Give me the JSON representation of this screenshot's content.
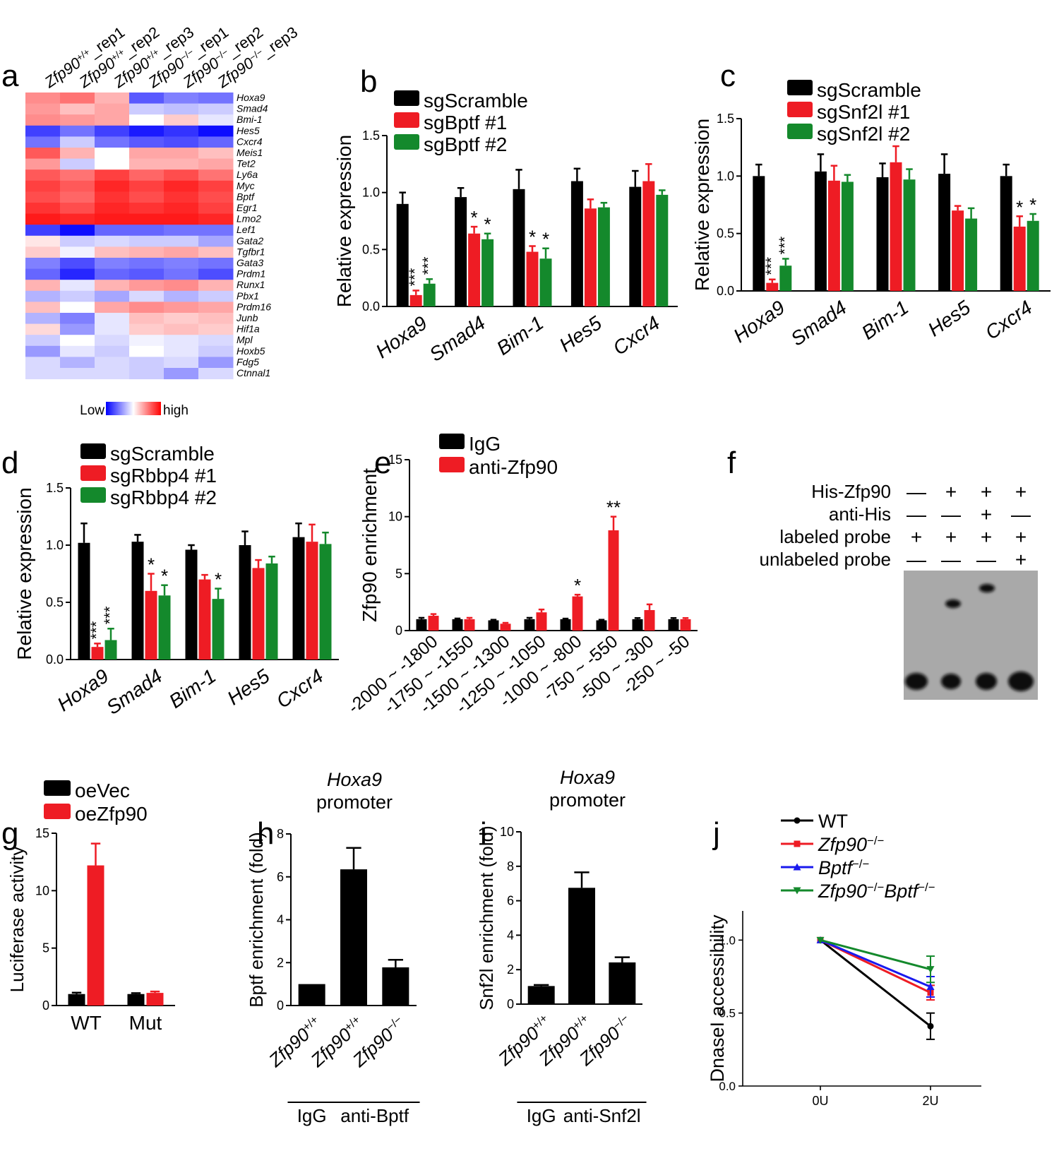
{
  "colors": {
    "black": "#000000",
    "red": "#ee1c24",
    "green": "#14892c",
    "blue": "#1a1aee",
    "heat_low": "#0000ff",
    "heat_mid": "#ffffff",
    "heat_high": "#ff0000",
    "gel_bg": "#a9a9a9",
    "band": "#080808"
  },
  "chart_data": [
    {
      "panel": "a",
      "type": "heatmap",
      "columns": [
        "Zfp90+/+_rep1",
        "Zfp90+/+_rep2",
        "Zfp90+/+_rep3",
        "Zfp90−/−_rep1",
        "Zfp90−/−_rep2",
        "Zfp90−/−_rep3"
      ],
      "column_labels": [
        {
          "gene": "Zfp90",
          "sup": "+/+",
          "rep": "_rep1"
        },
        {
          "gene": "Zfp90",
          "sup": "+/+",
          "rep": "_rep2"
        },
        {
          "gene": "Zfp90",
          "sup": "+/+",
          "rep": "_rep3"
        },
        {
          "gene": "Zfp90",
          "sup": "−/−",
          "rep": "_rep1"
        },
        {
          "gene": "Zfp90",
          "sup": "−/−",
          "rep": "_rep2"
        },
        {
          "gene": "Zfp90",
          "sup": "−/−",
          "rep": "_rep3"
        }
      ],
      "rows": [
        "Hoxa9",
        "Smad4",
        "Bmi-1",
        "Hes5",
        "Cxcr4",
        "Meis1",
        "Tet2",
        "Ly6a",
        "Myc",
        "Bptf",
        "Egr1",
        "Lmo2",
        "Lef1",
        "Gata2",
        "Tgfbr1",
        "Gata3",
        "Prdm1",
        "Runx1",
        "Pbx1",
        "Prdm16",
        "Junb",
        "Hif1a",
        "Mpl",
        "Hoxb5",
        "Fdg5",
        "Ctnnal1"
      ],
      "values": [
        [
          0.45,
          0.55,
          0.3,
          -0.65,
          -0.5,
          -0.55
        ],
        [
          0.4,
          0.25,
          0.35,
          -0.2,
          -0.25,
          -0.2
        ],
        [
          0.45,
          0.4,
          0.35,
          0.0,
          0.2,
          -0.1
        ],
        [
          -0.75,
          -0.55,
          -0.75,
          -0.9,
          -0.8,
          -0.95
        ],
        [
          -0.55,
          -0.2,
          -0.55,
          -0.65,
          -0.7,
          -0.6
        ],
        [
          0.65,
          0.3,
          0.0,
          0.35,
          0.35,
          0.25
        ],
        [
          0.4,
          -0.2,
          0.0,
          0.3,
          0.3,
          0.35
        ],
        [
          0.65,
          0.55,
          0.75,
          0.6,
          0.7,
          0.55
        ],
        [
          0.75,
          0.65,
          0.85,
          0.75,
          0.85,
          0.75
        ],
        [
          0.7,
          0.6,
          0.8,
          0.7,
          0.8,
          0.7
        ],
        [
          0.8,
          0.7,
          0.85,
          0.8,
          0.85,
          0.75
        ],
        [
          0.9,
          0.85,
          0.9,
          0.9,
          0.9,
          0.85
        ],
        [
          -0.75,
          -0.95,
          -0.6,
          -0.6,
          -0.55,
          -0.55
        ],
        [
          0.1,
          -0.2,
          -0.15,
          -0.2,
          -0.2,
          -0.35
        ],
        [
          0.2,
          -0.05,
          0.25,
          0.3,
          0.35,
          0.25
        ],
        [
          -0.5,
          -0.7,
          -0.5,
          -0.55,
          -0.5,
          -0.55
        ],
        [
          -0.6,
          -0.85,
          -0.6,
          -0.65,
          -0.55,
          -0.7
        ],
        [
          0.3,
          -0.1,
          0.3,
          0.4,
          0.45,
          0.3
        ],
        [
          -0.3,
          -0.2,
          -0.35,
          -0.15,
          -0.3,
          -0.2
        ],
        [
          0.25,
          0.0,
          0.35,
          0.45,
          0.4,
          0.35
        ],
        [
          -0.3,
          -0.5,
          -0.1,
          0.25,
          0.2,
          0.25
        ],
        [
          0.15,
          -0.4,
          -0.1,
          0.2,
          0.25,
          0.2
        ],
        [
          -0.2,
          0.0,
          -0.15,
          -0.05,
          -0.1,
          -0.15
        ],
        [
          -0.4,
          -0.1,
          -0.2,
          0.0,
          -0.1,
          -0.2
        ],
        [
          -0.15,
          -0.3,
          -0.15,
          -0.2,
          -0.15,
          -0.4
        ],
        [
          -0.15,
          -0.15,
          -0.15,
          -0.2,
          -0.4,
          -0.15
        ]
      ],
      "legend": {
        "low": "Low",
        "high": "high"
      }
    },
    {
      "panel": "b",
      "type": "bar",
      "ylabel": "Relative expression",
      "ylim": [
        0,
        1.5
      ],
      "yticks": [
        "0.0",
        "0.5",
        "1.0",
        "1.5"
      ],
      "categories": [
        "Hoxa9",
        "Smad4",
        "Bim-1",
        "Hes5",
        "Cxcr4"
      ],
      "series": [
        {
          "name": "sgScramble",
          "color": "#000000",
          "values": [
            0.9,
            0.96,
            1.03,
            1.1,
            1.05
          ],
          "errors": [
            0.1,
            0.08,
            0.17,
            0.11,
            0.14
          ]
        },
        {
          "name": "sgBptf #1",
          "color": "#ee1c24",
          "values": [
            0.1,
            0.64,
            0.48,
            0.86,
            1.1
          ],
          "errors": [
            0.04,
            0.06,
            0.05,
            0.08,
            0.15
          ]
        },
        {
          "name": "sgBptf #2",
          "color": "#14892c",
          "values": [
            0.2,
            0.59,
            0.42,
            0.87,
            0.98
          ],
          "errors": [
            0.04,
            0.05,
            0.09,
            0.04,
            0.04
          ]
        }
      ],
      "annotations": [
        {
          "category": 0,
          "series": 1,
          "text": "***"
        },
        {
          "category": 0,
          "series": 2,
          "text": "***"
        },
        {
          "category": 1,
          "series": 1,
          "text": "*"
        },
        {
          "category": 1,
          "series": 2,
          "text": "*"
        },
        {
          "category": 2,
          "series": 1,
          "text": "*"
        },
        {
          "category": 2,
          "series": 2,
          "text": "*"
        }
      ]
    },
    {
      "panel": "c",
      "type": "bar",
      "ylabel": "Relative expression",
      "ylim": [
        0,
        1.5
      ],
      "yticks": [
        "0.0",
        "0.5",
        "1.0",
        "1.5"
      ],
      "categories": [
        "Hoxa9",
        "Smad4",
        "Bim-1",
        "Hes5",
        "Cxcr4"
      ],
      "series": [
        {
          "name": "sgScramble",
          "color": "#000000",
          "values": [
            1.0,
            1.04,
            0.99,
            1.02,
            1.0
          ],
          "errors": [
            0.1,
            0.15,
            0.12,
            0.17,
            0.1
          ]
        },
        {
          "name": "sgSnf2l #1",
          "color": "#ee1c24",
          "values": [
            0.07,
            0.96,
            1.12,
            0.7,
            0.56
          ],
          "errors": [
            0.03,
            0.13,
            0.14,
            0.04,
            0.09
          ]
        },
        {
          "name": "sgSnf2l #2",
          "color": "#14892c",
          "values": [
            0.22,
            0.95,
            0.97,
            0.63,
            0.61
          ],
          "errors": [
            0.06,
            0.06,
            0.09,
            0.09,
            0.06
          ]
        }
      ],
      "annotations": [
        {
          "category": 0,
          "series": 1,
          "text": "***"
        },
        {
          "category": 0,
          "series": 2,
          "text": "***"
        },
        {
          "category": 4,
          "series": 1,
          "text": "*"
        },
        {
          "category": 4,
          "series": 2,
          "text": "*"
        }
      ]
    },
    {
      "panel": "d",
      "type": "bar",
      "ylabel": "Relative expression",
      "ylim": [
        0,
        1.5
      ],
      "yticks": [
        "0.0",
        "0.5",
        "1.0",
        "1.5"
      ],
      "categories": [
        "Hoxa9",
        "Smad4",
        "Bim-1",
        "Hes5",
        "Cxcr4"
      ],
      "series": [
        {
          "name": "sgScramble",
          "color": "#000000",
          "values": [
            1.02,
            1.03,
            0.96,
            1.0,
            1.07
          ],
          "errors": [
            0.17,
            0.06,
            0.04,
            0.12,
            0.12
          ]
        },
        {
          "name": "sgRbbp4 #1",
          "color": "#ee1c24",
          "values": [
            0.11,
            0.6,
            0.7,
            0.8,
            1.03
          ],
          "errors": [
            0.03,
            0.15,
            0.04,
            0.07,
            0.15
          ]
        },
        {
          "name": "sgRbbp4 #2",
          "color": "#14892c",
          "values": [
            0.17,
            0.56,
            0.53,
            0.84,
            1.01
          ],
          "errors": [
            0.1,
            0.09,
            0.09,
            0.06,
            0.1
          ]
        }
      ],
      "annotations": [
        {
          "category": 0,
          "series": 1,
          "text": "***"
        },
        {
          "category": 0,
          "series": 2,
          "text": "***"
        },
        {
          "category": 1,
          "series": 1,
          "text": "*"
        },
        {
          "category": 1,
          "series": 2,
          "text": "*"
        },
        {
          "category": 2,
          "series": 2,
          "text": "*"
        }
      ]
    },
    {
      "panel": "e",
      "type": "bar",
      "ylabel": "Zfp90 enrichment",
      "ylim": [
        0,
        15
      ],
      "yticks": [
        "0",
        "5",
        "10",
        "15"
      ],
      "categories": [
        "-2000 ~ -1800",
        "-1750 ~ -1550",
        "-1500 ~ -1300",
        "-1250 ~ -1050",
        "-1000 ~ -800",
        "-750 ~ -550",
        "-500 ~ -300",
        "-250 ~ -50"
      ],
      "series": [
        {
          "name": "IgG",
          "color": "#000000",
          "values": [
            1.0,
            1.0,
            0.9,
            1.0,
            1.0,
            0.9,
            1.0,
            1.0
          ],
          "errors": [
            0.12,
            0.06,
            0.05,
            0.12,
            0.05,
            0.05,
            0.1,
            0.1
          ]
        },
        {
          "name": "anti-Zfp90",
          "color": "#ee1c24",
          "values": [
            1.3,
            1.0,
            0.6,
            1.6,
            3.0,
            8.8,
            1.8,
            1.0
          ],
          "errors": [
            0.15,
            0.12,
            0.08,
            0.25,
            0.15,
            1.2,
            0.5,
            0.1
          ]
        }
      ],
      "annotations": [
        {
          "category": 4,
          "series": 1,
          "text": "*"
        },
        {
          "category": 5,
          "series": 1,
          "text": "**"
        }
      ]
    },
    {
      "panel": "f",
      "type": "gel",
      "rows": [
        {
          "label": "His-Zfp90",
          "marks": [
            "—",
            "+",
            "+",
            "+"
          ]
        },
        {
          "label": "anti-His",
          "marks": [
            "—",
            "—",
            "+",
            "—"
          ]
        },
        {
          "label": "labeled probe",
          "marks": [
            "+",
            "+",
            "+",
            "+"
          ]
        },
        {
          "label": "unlabeled probe",
          "marks": [
            "—",
            "—",
            "—",
            "+"
          ]
        }
      ]
    },
    {
      "panel": "g",
      "type": "bar",
      "ylabel": "Luciferase activity",
      "ylim": [
        0,
        15
      ],
      "yticks": [
        "0",
        "5",
        "10",
        "15"
      ],
      "categories": [
        "WT",
        "Mut"
      ],
      "series": [
        {
          "name": "oeVec",
          "color": "#000000",
          "values": [
            1.0,
            1.0
          ],
          "errors": [
            0.12,
            0.08
          ]
        },
        {
          "name": "oeZfp90",
          "color": "#ee1c24",
          "values": [
            12.2,
            1.1
          ],
          "errors": [
            1.9,
            0.12
          ]
        }
      ]
    },
    {
      "panel": "h",
      "type": "bar",
      "title_gene": "Hoxa9",
      "title_rest": "promoter",
      "ylabel": "Bptf enrichment (fold)",
      "ylim": [
        0,
        8
      ],
      "yticks": [
        "0",
        "2",
        "4",
        "6",
        "8"
      ],
      "categories": [
        "Zfp90+/+",
        "Zfp90+/+",
        "Zfp90−/−"
      ],
      "category_labels": [
        {
          "gene": "Zfp90",
          "sup": "+/+"
        },
        {
          "gene": "Zfp90",
          "sup": "+/+"
        },
        {
          "gene": "Zfp90",
          "sup": "−/−"
        }
      ],
      "series": [
        {
          "name": "fold",
          "color": "#000000",
          "values": [
            1.0,
            6.35,
            1.78
          ],
          "errors": [
            0.0,
            1.0,
            0.35
          ]
        }
      ],
      "groups": [
        {
          "label": "IgG",
          "from": 0,
          "to": 0
        },
        {
          "label": "anti-Bptf",
          "from": 1,
          "to": 2
        }
      ]
    },
    {
      "panel": "i",
      "type": "bar",
      "title_gene": "Hoxa9",
      "title_rest": "promoter",
      "ylabel": "Snf2l enrichment (fold)",
      "ylim": [
        0,
        10
      ],
      "yticks": [
        "0",
        "2",
        "4",
        "6",
        "8",
        "10"
      ],
      "categories": [
        "Zfp90+/+",
        "Zfp90+/+",
        "Zfp90−/−"
      ],
      "category_labels": [
        {
          "gene": "Zfp90",
          "sup": "+/+"
        },
        {
          "gene": "Zfp90",
          "sup": "+/+"
        },
        {
          "gene": "Zfp90",
          "sup": "−/−"
        }
      ],
      "series": [
        {
          "name": "fold",
          "color": "#000000",
          "values": [
            1.05,
            6.75,
            2.42
          ],
          "errors": [
            0.06,
            0.9,
            0.3
          ]
        }
      ],
      "groups": [
        {
          "label": "IgG",
          "from": 0,
          "to": 0
        },
        {
          "label": "anti-Snf2l",
          "from": 1,
          "to": 2
        }
      ]
    },
    {
      "panel": "j",
      "type": "line",
      "ylabel": "DnaseI accessibility",
      "ylim": [
        0,
        1.2
      ],
      "yticks": [
        "0.0",
        "0.5",
        "1.0"
      ],
      "x": [
        "0U",
        "2U"
      ],
      "series": [
        {
          "name": "WT",
          "color": "#000000",
          "marker": "circle",
          "values": [
            1.0,
            0.41
          ],
          "errors": [
            0,
            0.09
          ]
        },
        {
          "name": "Zfp90−/−",
          "color": "#ee1c24",
          "marker": "square",
          "values": [
            1.0,
            0.64
          ],
          "errors": [
            0,
            0.05
          ]
        },
        {
          "name": "Bptf−/−",
          "color": "#1a1aee",
          "marker": "triangle-up",
          "values": [
            1.0,
            0.68
          ],
          "errors": [
            0,
            0.07
          ]
        },
        {
          "name": "Zfp90−/−Bptf−/−",
          "color": "#14892c",
          "marker": "triangle-down",
          "values": [
            1.0,
            0.8
          ],
          "errors": [
            0,
            0.09
          ]
        }
      ],
      "legend_labels": [
        [
          {
            "t": "WT",
            "it": false
          }
        ],
        [
          {
            "t": "Zfp90",
            "it": true
          },
          {
            "t": "−/−",
            "sup": true
          }
        ],
        [
          {
            "t": "Bptf",
            "it": true
          },
          {
            "t": "−/−",
            "sup": true
          }
        ],
        [
          {
            "t": "Zfp90",
            "it": true
          },
          {
            "t": "−/−",
            "sup": true
          },
          {
            "t": "Bptf",
            "it": true
          },
          {
            "t": "−/−",
            "sup": true
          }
        ]
      ]
    }
  ],
  "panels": [
    "a",
    "b",
    "c",
    "d",
    "e",
    "f",
    "g",
    "h",
    "i",
    "j"
  ]
}
